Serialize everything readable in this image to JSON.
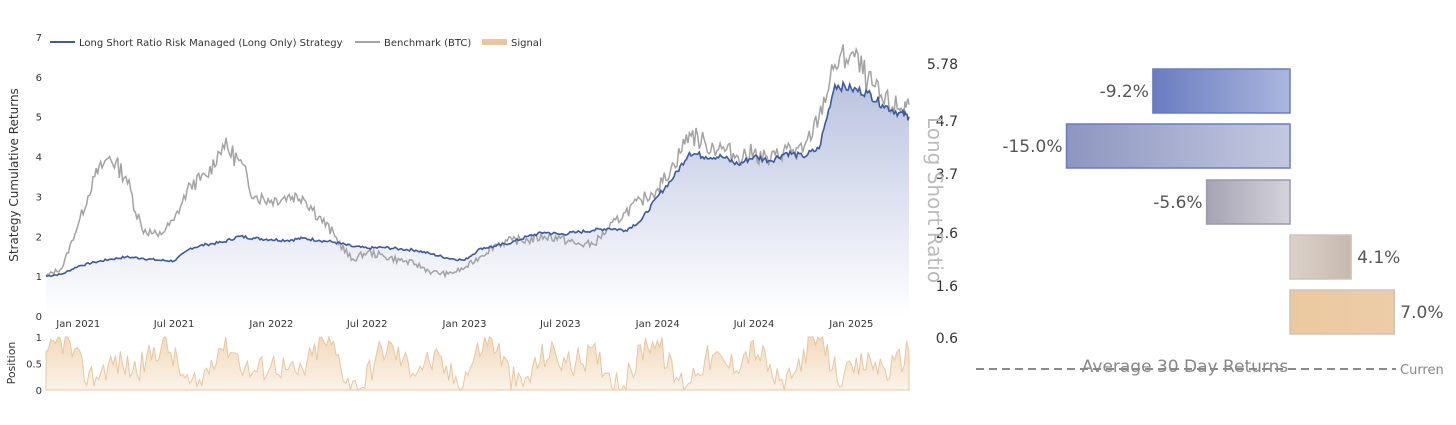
{
  "legend": {
    "strategy": "Long Short Ratio Risk Managed (Long Only) Strategy",
    "benchmark": "Benchmark (BTC)",
    "signal": "Signal"
  },
  "colors": {
    "strategy": "#3d5a9e",
    "benchmark": "#a3a3a3",
    "signal": "#e8c7a0",
    "area_top": "#b6bfde"
  },
  "chart_data": [
    {
      "type": "line",
      "ylabel": "Strategy Cumulative Returns",
      "ylim": [
        0,
        7
      ],
      "yticks": [
        "0",
        "1",
        "2",
        "3",
        "4",
        "5",
        "6",
        "7"
      ],
      "xlim": [
        "2020-11-01",
        "2025-04-20"
      ],
      "xticks": [
        {
          "date": "2021-01-01",
          "label": "Jan 2021"
        },
        {
          "date": "2021-07-01",
          "label": "Jul 2021"
        },
        {
          "date": "2022-01-01",
          "label": "Jan 2022"
        },
        {
          "date": "2022-07-01",
          "label": "Jul 2022"
        },
        {
          "date": "2023-01-01",
          "label": "Jan 2023"
        },
        {
          "date": "2023-07-01",
          "label": "Jul 2023"
        },
        {
          "date": "2024-01-01",
          "label": "Jan 2024"
        },
        {
          "date": "2024-07-01",
          "label": "Jul 2024"
        },
        {
          "date": "2025-01-01",
          "label": "Jan 2025"
        }
      ],
      "grid": false,
      "legend_position": "top-left",
      "series": [
        {
          "name": "Long Short Ratio Risk Managed (Long Only) Strategy",
          "x": [
            "2020-11-01",
            "2020-12-01",
            "2021-01-01",
            "2021-02-01",
            "2021-03-01",
            "2021-04-01",
            "2021-05-01",
            "2021-06-01",
            "2021-07-01",
            "2021-08-01",
            "2021-09-01",
            "2021-10-01",
            "2021-11-01",
            "2021-12-01",
            "2022-01-01",
            "2022-02-01",
            "2022-03-01",
            "2022-04-01",
            "2022-05-01",
            "2022-06-01",
            "2022-07-01",
            "2022-08-01",
            "2022-09-01",
            "2022-10-01",
            "2022-11-01",
            "2022-12-01",
            "2023-01-01",
            "2023-02-01",
            "2023-03-01",
            "2023-04-01",
            "2023-05-01",
            "2023-06-01",
            "2023-07-01",
            "2023-08-01",
            "2023-09-01",
            "2023-10-01",
            "2023-11-01",
            "2023-12-01",
            "2024-01-01",
            "2024-02-01",
            "2024-03-01",
            "2024-04-01",
            "2024-05-01",
            "2024-06-01",
            "2024-07-01",
            "2024-08-01",
            "2024-09-01",
            "2024-10-01",
            "2024-11-01",
            "2024-12-01",
            "2025-01-01",
            "2025-02-01",
            "2025-03-01",
            "2025-04-01",
            "2025-04-20"
          ],
          "y": [
            1.0,
            1.05,
            1.25,
            1.35,
            1.42,
            1.48,
            1.45,
            1.4,
            1.38,
            1.7,
            1.8,
            1.85,
            2.0,
            1.95,
            1.92,
            1.9,
            1.95,
            1.9,
            1.85,
            1.75,
            1.7,
            1.72,
            1.68,
            1.65,
            1.55,
            1.45,
            1.4,
            1.7,
            1.75,
            1.85,
            2.0,
            2.1,
            2.05,
            2.1,
            2.15,
            2.2,
            2.15,
            2.4,
            3.0,
            3.5,
            4.1,
            4.0,
            4.0,
            3.8,
            4.0,
            3.9,
            4.1,
            4.0,
            4.2,
            5.8,
            5.7,
            5.6,
            5.3,
            5.1,
            5.0
          ]
        },
        {
          "name": "Benchmark (BTC)",
          "x": [
            "2020-11-01",
            "2020-12-01",
            "2021-01-01",
            "2021-02-01",
            "2021-03-01",
            "2021-04-01",
            "2021-05-01",
            "2021-06-01",
            "2021-07-01",
            "2021-08-01",
            "2021-09-01",
            "2021-10-01",
            "2021-11-01",
            "2021-12-01",
            "2022-01-01",
            "2022-02-01",
            "2022-03-01",
            "2022-04-01",
            "2022-05-01",
            "2022-06-01",
            "2022-07-01",
            "2022-08-01",
            "2022-09-01",
            "2022-10-01",
            "2022-11-01",
            "2022-12-01",
            "2023-01-01",
            "2023-02-01",
            "2023-03-01",
            "2023-04-01",
            "2023-05-01",
            "2023-06-01",
            "2023-07-01",
            "2023-08-01",
            "2023-09-01",
            "2023-10-01",
            "2023-11-01",
            "2023-12-01",
            "2024-01-01",
            "2024-02-01",
            "2024-03-01",
            "2024-04-01",
            "2024-05-01",
            "2024-06-01",
            "2024-07-01",
            "2024-08-01",
            "2024-09-01",
            "2024-10-01",
            "2024-11-01",
            "2024-12-01",
            "2025-01-01",
            "2025-02-01",
            "2025-03-01",
            "2025-04-01",
            "2025-04-20"
          ],
          "y": [
            1.0,
            1.2,
            2.3,
            3.5,
            4.0,
            3.5,
            2.2,
            2.0,
            2.4,
            3.3,
            3.5,
            4.3,
            3.9,
            3.0,
            2.9,
            3.0,
            3.0,
            2.5,
            2.0,
            1.4,
            1.6,
            1.5,
            1.4,
            1.3,
            1.1,
            1.05,
            1.2,
            1.5,
            1.8,
            1.9,
            1.9,
            2.0,
            1.95,
            1.8,
            1.8,
            2.2,
            2.6,
            2.9,
            3.2,
            3.8,
            4.6,
            4.3,
            4.2,
            4.0,
            4.1,
            3.9,
            4.2,
            4.1,
            5.0,
            6.3,
            6.6,
            5.9,
            5.4,
            5.2,
            5.3
          ]
        }
      ]
    },
    {
      "type": "area",
      "ylabel": "Position",
      "ylim": [
        0,
        1
      ],
      "yticks": [
        "0",
        "0.5",
        "1"
      ],
      "xlim": [
        "2020-11-01",
        "2025-04-20"
      ],
      "series": [
        {
          "name": "Signal",
          "note_pattern": "oscillating between 0 and 1"
        }
      ]
    },
    {
      "type": "bar",
      "orientation": "horizontal",
      "xlabel": "Average 30 Day Returns",
      "ylabel": "Long Short Ratio",
      "yticks": [
        "5.78",
        "4.7",
        "3.7",
        "2.6",
        "1.6",
        "0.6"
      ],
      "reference_label": "Curren",
      "categories": [
        "5.78-4.7",
        "4.7-3.7",
        "3.7-2.6",
        "2.6-1.6",
        "1.6-0.6"
      ],
      "values": [
        -9.2,
        -15.0,
        -5.6,
        4.1,
        7.0
      ],
      "labels": [
        "-9.2%",
        "-15.0%",
        "-5.6%",
        "4.1%",
        "7.0%"
      ],
      "bar_colors": [
        [
          "#6a7cc0",
          "#aab6dd"
        ],
        [
          "#8d96bf",
          "#c3c8e0"
        ],
        [
          "#a5a3b3",
          "#d4d3db"
        ],
        [
          "#d6cbc3",
          "#c6b9ae"
        ],
        [
          "#ebc9a0",
          "#eccda8"
        ]
      ]
    }
  ]
}
